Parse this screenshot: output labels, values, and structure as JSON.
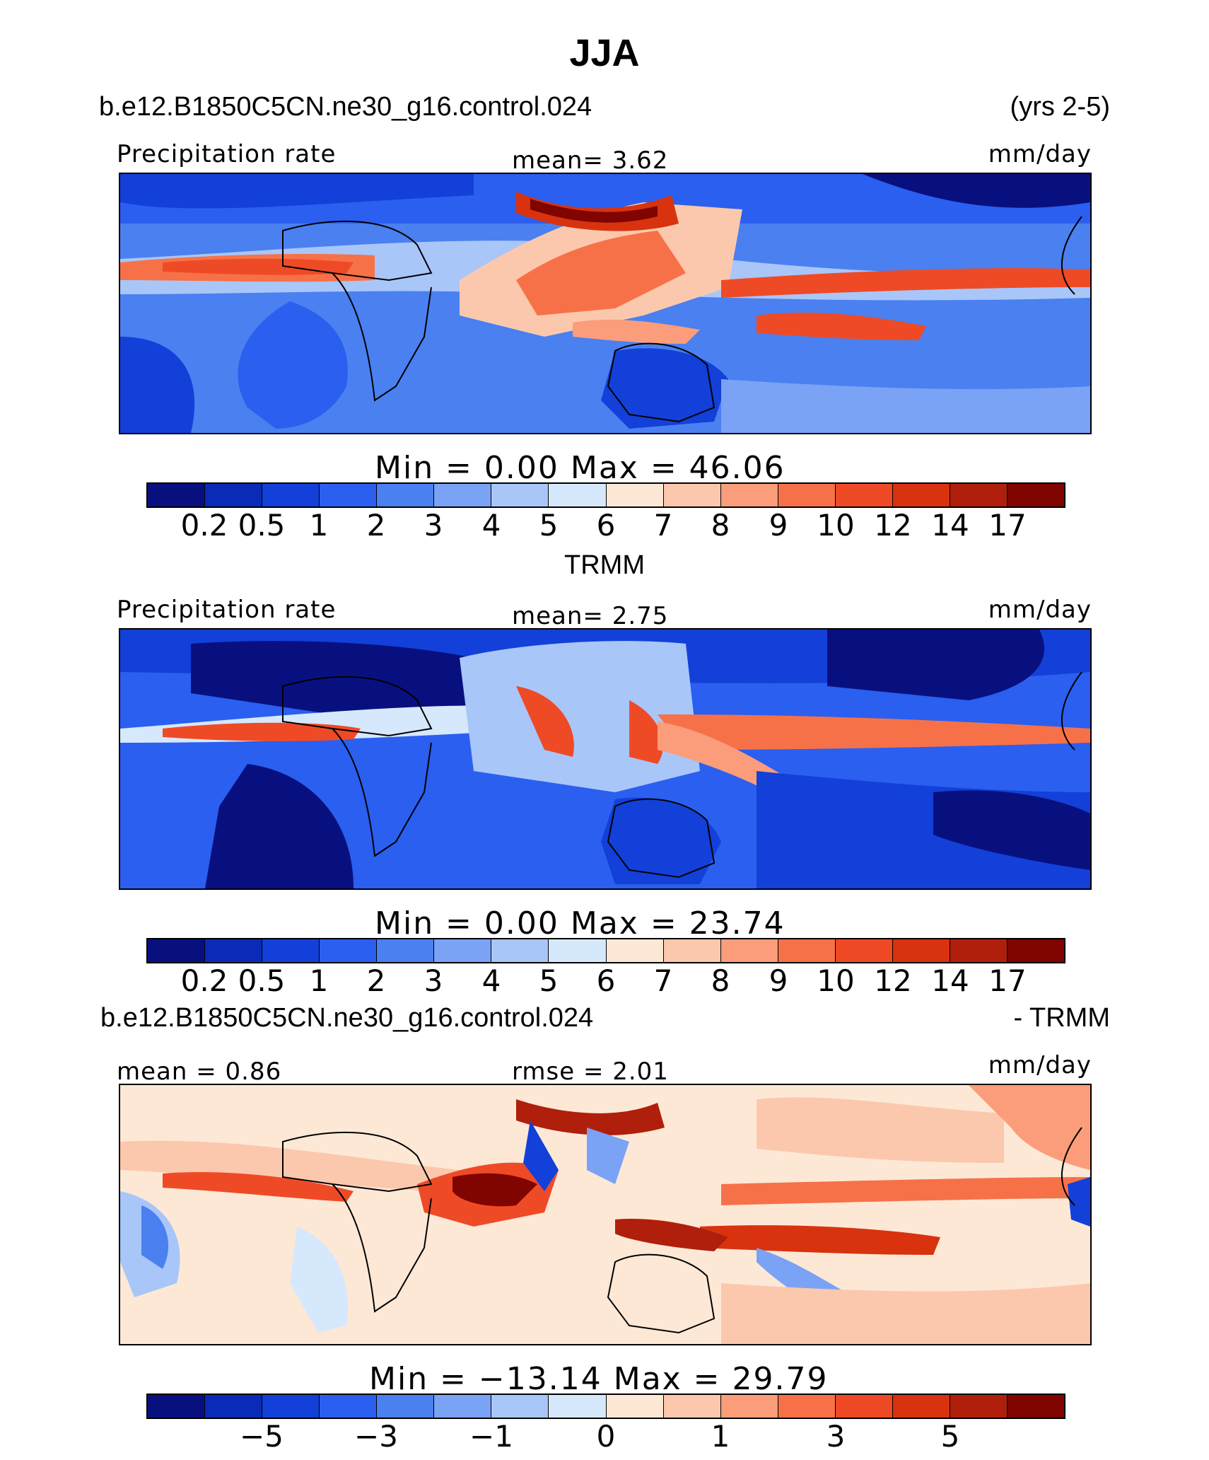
{
  "title": "JJA",
  "model_case": "b.e12.B1850C5CN.ne30_g16.control.024",
  "years": "(yrs 2-5)",
  "colors": [
    "#08107f",
    "#0a2bb8",
    "#1240d8",
    "#2a5ff0",
    "#4a80f0",
    "#7aa2f5",
    "#a9c6f9",
    "#d6e8fc",
    "#fde8d6",
    "#fcc8ad",
    "#fb9d7a",
    "#f77148",
    "#ef4a26",
    "#d8330e",
    "#b01f0b",
    "#800400"
  ],
  "panels": [
    {
      "variable": "Precipitation rate",
      "stat_left": "",
      "stat_center": "mean=    3.62",
      "units": "mm/day",
      "minmax": "Min  =     0.00  Max  =    46.06",
      "ticks": [
        "0.2",
        "0.5",
        "1",
        "2",
        "3",
        "4",
        "5",
        "6",
        "7",
        "8",
        "9",
        "10",
        "12",
        "14",
        "17"
      ],
      "mean": 3.62,
      "min": 0.0,
      "max": 46.06
    },
    {
      "title": "TRMM",
      "variable": "Precipitation rate",
      "stat_left": "",
      "stat_center": "mean=    2.75",
      "units": "mm/day",
      "minmax": "Min  =     0.00  Max  =    23.74",
      "ticks": [
        "0.2",
        "0.5",
        "1",
        "2",
        "3",
        "4",
        "5",
        "6",
        "7",
        "8",
        "9",
        "10",
        "12",
        "14",
        "17"
      ],
      "mean": 2.75,
      "min": 0.0,
      "max": 23.74
    },
    {
      "title_left": "b.e12.B1850C5CN.ne30_g16.control.024",
      "title_right": "- TRMM",
      "stat_left": "mean  =    0.86",
      "stat_center": "rmse  =    2.01",
      "units": "mm/day",
      "minmax": "Min  = −13.14  Max  =    29.79",
      "ticks": [
        "−5",
        "−3",
        "−1",
        "0",
        "1",
        "3",
        "5"
      ],
      "mean": 0.86,
      "rmse": 2.01,
      "min": -13.14,
      "max": 29.79
    }
  ]
}
